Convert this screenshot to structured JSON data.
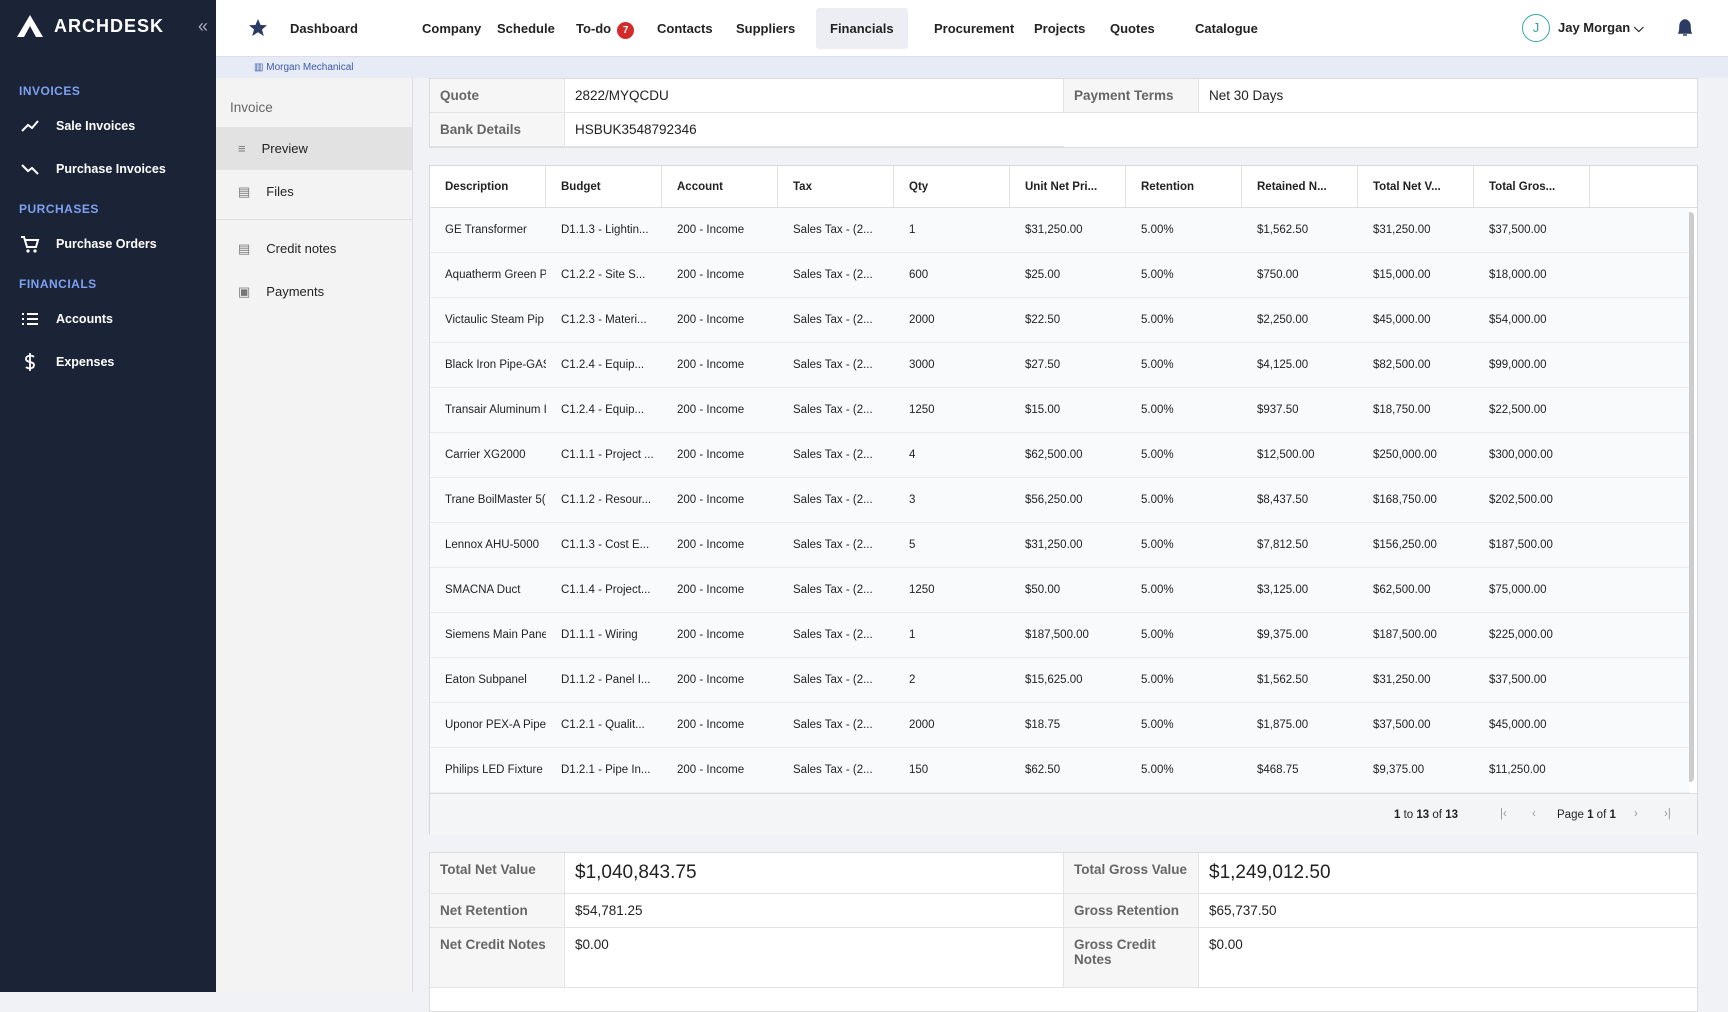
{
  "brand": "ARCHDESK",
  "sidebar": {
    "sections": [
      {
        "title": "INVOICES",
        "items": [
          "Sale Invoices",
          "Purchase Invoices"
        ]
      },
      {
        "title": "PURCHASES",
        "items": [
          "Purchase Orders"
        ]
      },
      {
        "title": "FINANCIALS",
        "items": [
          "Accounts",
          "Expenses"
        ]
      }
    ]
  },
  "nav": {
    "items": [
      "Dashboard",
      "Company",
      "Schedule",
      "To-do",
      "Contacts",
      "Suppliers",
      "Financials",
      "Procurement",
      "Projects",
      "Quotes",
      "Catalogue"
    ],
    "todo_badge": 7
  },
  "user": {
    "initial": "J",
    "name": "Jay Morgan"
  },
  "company": "Morgan Mechanical",
  "subnav": {
    "title": "Invoice",
    "items": [
      "Preview",
      "Files",
      "Credit notes",
      "Payments"
    ]
  },
  "details": {
    "rows": [
      [
        "Quote",
        "2822/MYQCDU",
        "Payment Terms",
        "Net 30 Days"
      ],
      [
        "Bank Details",
        "HSBUK3548792346"
      ]
    ]
  },
  "table": {
    "columns": [
      "Description",
      "Budget",
      "Account",
      "Tax",
      "Qty",
      "Unit Net Pri...",
      "Retention",
      "Retained N...",
      "Total Net V...",
      "Total Gros..."
    ],
    "rows": [
      [
        "GE Transformer",
        "D1.1.3 - Lightin...",
        "200 - Income",
        "Sales Tax - (2...",
        "1",
        "$31,250.00",
        "5.00%",
        "$1,562.50",
        "$31,250.00",
        "$37,500.00"
      ],
      [
        "Aquatherm Green P",
        "C1.2.2 - Site S...",
        "200 - Income",
        "Sales Tax - (2...",
        "600",
        "$25.00",
        "5.00%",
        "$750.00",
        "$15,000.00",
        "$18,000.00"
      ],
      [
        "Victaulic Steam Pip",
        "C1.2.3 - Materi...",
        "200 - Income",
        "Sales Tax - (2...",
        "2000",
        "$22.50",
        "5.00%",
        "$2,250.00",
        "$45,000.00",
        "$54,000.00"
      ],
      [
        "Black Iron Pipe-GAS",
        "C1.2.4 - Equip...",
        "200 - Income",
        "Sales Tax - (2...",
        "3000",
        "$27.50",
        "5.00%",
        "$4,125.00",
        "$82,500.00",
        "$99,000.00"
      ],
      [
        "Transair Aluminum I",
        "C1.2.4 - Equip...",
        "200 - Income",
        "Sales Tax - (2...",
        "1250",
        "$15.00",
        "5.00%",
        "$937.50",
        "$18,750.00",
        "$22,500.00"
      ],
      [
        "Carrier XG2000",
        "C1.1.1 - Project ...",
        "200 - Income",
        "Sales Tax - (2...",
        "4",
        "$62,500.00",
        "5.00%",
        "$12,500.00",
        "$250,000.00",
        "$300,000.00"
      ],
      [
        "Trane BoilMaster 5(",
        "C1.1.2 - Resour...",
        "200 - Income",
        "Sales Tax - (2...",
        "3",
        "$56,250.00",
        "5.00%",
        "$8,437.50",
        "$168,750.00",
        "$202,500.00"
      ],
      [
        "Lennox AHU-5000",
        "C1.1.3 - Cost E...",
        "200 - Income",
        "Sales Tax - (2...",
        "5",
        "$31,250.00",
        "5.00%",
        "$7,812.50",
        "$156,250.00",
        "$187,500.00"
      ],
      [
        "SMACNA Duct",
        "C1.1.4 - Project...",
        "200 - Income",
        "Sales Tax - (2...",
        "1250",
        "$50.00",
        "5.00%",
        "$3,125.00",
        "$62,500.00",
        "$75,000.00"
      ],
      [
        "Siemens Main Pane",
        "D1.1.1 - Wiring",
        "200 - Income",
        "Sales Tax - (2...",
        "1",
        "$187,500.00",
        "5.00%",
        "$9,375.00",
        "$187,500.00",
        "$225,000.00"
      ],
      [
        "Eaton Subpanel",
        "D1.1.2 - Panel I...",
        "200 - Income",
        "Sales Tax - (2...",
        "2",
        "$15,625.00",
        "5.00%",
        "$1,562.50",
        "$31,250.00",
        "$37,500.00"
      ],
      [
        "Uponor PEX-A Pipe",
        "C1.2.1 - Qualit...",
        "200 - Income",
        "Sales Tax - (2...",
        "2000",
        "$18.75",
        "5.00%",
        "$1,875.00",
        "$37,500.00",
        "$45,000.00"
      ],
      [
        "Philips LED Fixture",
        "D1.2.1 - Pipe In...",
        "200 - Income",
        "Sales Tax - (2...",
        "150",
        "$62.50",
        "5.00%",
        "$468.75",
        "$9,375.00",
        "$11,250.00"
      ]
    ]
  },
  "pagination": {
    "from": 1,
    "to_word": "to",
    "to": 13,
    "of_word": "of",
    "total": 13,
    "page_word": "Page",
    "page": 1,
    "pages_word": "of",
    "pages": 1
  },
  "totals": {
    "rows": [
      [
        "Total Net Value",
        "$1,040,843.75",
        "Total Gross Value",
        "$1,249,012.50"
      ],
      [
        "Net Retention",
        "$54,781.25",
        "Gross Retention",
        "$65,737.50"
      ],
      [
        "Net Credit Notes",
        "$0.00",
        "Gross Credit Notes",
        "$0.00"
      ]
    ]
  }
}
